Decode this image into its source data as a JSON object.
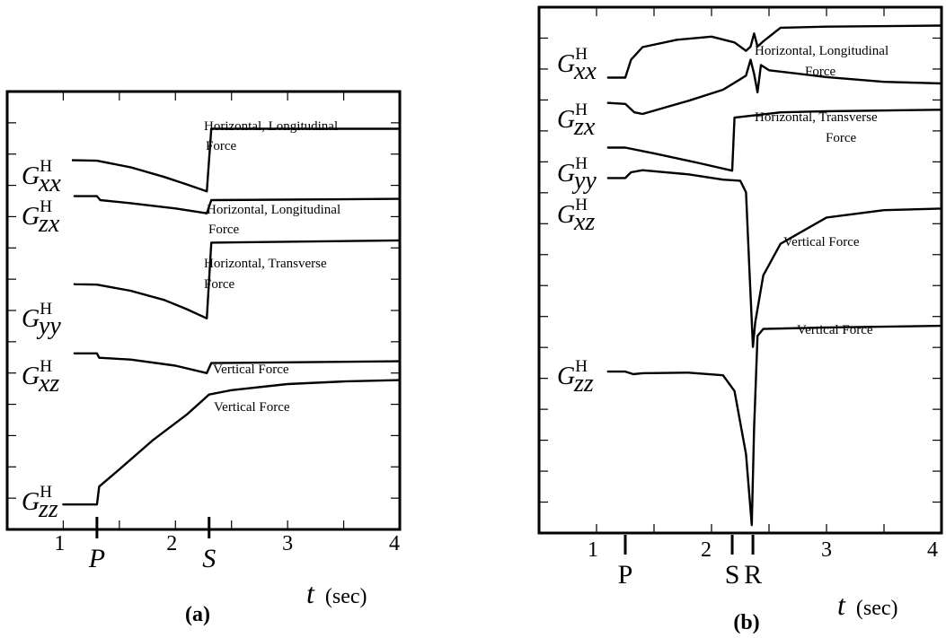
{
  "chart_data": [
    {
      "type": "line",
      "caption": "(a)",
      "xlabel": "t",
      "xunit": "(sec)",
      "xlim": [
        0.5,
        4.0
      ],
      "xticks": [
        "1",
        "2",
        "3",
        "4"
      ],
      "events": [
        {
          "label": "P",
          "x": 1.3
        },
        {
          "label": "S",
          "x": 2.3
        }
      ],
      "series": [
        {
          "symbol": "G",
          "sup": "H",
          "sub": "xx",
          "annotation": [
            "Horizontal, Longitudinal",
            "Force"
          ],
          "points": [
            [
              0.52,
              0.843
            ],
            [
              1.1,
              0.843
            ],
            [
              1.3,
              0.842
            ],
            [
              1.6,
              0.827
            ],
            [
              1.9,
              0.805
            ],
            [
              2.1,
              0.788
            ],
            [
              2.28,
              0.772
            ],
            [
              2.32,
              0.915
            ],
            [
              4.0,
              0.915
            ]
          ]
        },
        {
          "symbol": "G",
          "sup": "H",
          "sub": "zx",
          "annotation": [
            "Horizontal, Longitudinal",
            "Force"
          ],
          "points": [
            [
              0.52,
              0.761
            ],
            [
              1.1,
              0.761
            ],
            [
              1.3,
              0.761
            ],
            [
              1.33,
              0.752
            ],
            [
              1.6,
              0.745
            ],
            [
              2.0,
              0.733
            ],
            [
              2.28,
              0.722
            ],
            [
              2.32,
              0.752
            ],
            [
              4.0,
              0.755
            ]
          ]
        },
        {
          "symbol": "G",
          "sup": "H",
          "sub": "yy",
          "annotation": [
            "Horizontal, Transverse",
            "Force"
          ],
          "points": [
            [
              0.52,
              0.56
            ],
            [
              1.1,
              0.56
            ],
            [
              1.3,
              0.559
            ],
            [
              1.6,
              0.545
            ],
            [
              1.9,
              0.524
            ],
            [
              2.1,
              0.503
            ],
            [
              2.28,
              0.482
            ],
            [
              2.32,
              0.655
            ],
            [
              4.0,
              0.66
            ]
          ]
        },
        {
          "symbol": "G",
          "sup": "H",
          "sub": "xz",
          "annotation": [
            "Vertical Force"
          ],
          "points": [
            [
              0.52,
              0.402
            ],
            [
              1.1,
              0.402
            ],
            [
              1.3,
              0.402
            ],
            [
              1.32,
              0.392
            ],
            [
              1.6,
              0.388
            ],
            [
              2.0,
              0.374
            ],
            [
              2.28,
              0.357
            ],
            [
              2.32,
              0.38
            ],
            [
              4.0,
              0.384
            ]
          ]
        },
        {
          "symbol": "G",
          "sup": "H",
          "sub": "zz",
          "annotation": [
            "Vertical Force"
          ],
          "points": [
            [
              0.52,
              0.057
            ],
            [
              1.0,
              0.057
            ],
            [
              1.3,
              0.057
            ],
            [
              1.32,
              0.098
            ],
            [
              1.5,
              0.137
            ],
            [
              1.8,
              0.204
            ],
            [
              2.1,
              0.262
            ],
            [
              2.3,
              0.308
            ],
            [
              2.5,
              0.318
            ],
            [
              3.0,
              0.332
            ],
            [
              3.5,
              0.338
            ],
            [
              4.0,
              0.341
            ]
          ]
        }
      ]
    },
    {
      "type": "line",
      "caption": "(b)",
      "xlabel": "t",
      "xunit": "(sec)",
      "xlim": [
        0.5,
        4.0
      ],
      "xticks": [
        "1",
        "2",
        "3",
        "4"
      ],
      "events": [
        {
          "label": "P",
          "x": 1.25
        },
        {
          "label": "S",
          "x": 2.18
        },
        {
          "label": "R",
          "x": 2.36
        }
      ],
      "series": [
        {
          "symbol": "G",
          "sup": "H",
          "sub": "xx",
          "annotation": [
            "Horizontal, Longitudinal",
            "Force"
          ],
          "points": [
            [
              0.52,
              0.866
            ],
            [
              1.1,
              0.866
            ],
            [
              1.25,
              0.866
            ],
            [
              1.3,
              0.9
            ],
            [
              1.4,
              0.924
            ],
            [
              1.7,
              0.938
            ],
            [
              2.0,
              0.944
            ],
            [
              2.2,
              0.933
            ],
            [
              2.3,
              0.917
            ],
            [
              2.34,
              0.925
            ],
            [
              2.37,
              0.95
            ],
            [
              2.4,
              0.925
            ],
            [
              2.45,
              0.935
            ],
            [
              2.6,
              0.961
            ],
            [
              3.0,
              0.963
            ],
            [
              4.0,
              0.965
            ]
          ]
        },
        {
          "symbol": "G",
          "sup": "H",
          "sub": "zx",
          "annotation": [],
          "points": [
            [
              0.52,
              0.818
            ],
            [
              1.1,
              0.818
            ],
            [
              1.25,
              0.816
            ],
            [
              1.33,
              0.8
            ],
            [
              1.4,
              0.797
            ],
            [
              1.8,
              0.822
            ],
            [
              2.1,
              0.843
            ],
            [
              2.25,
              0.863
            ],
            [
              2.3,
              0.87
            ],
            [
              2.34,
              0.9
            ],
            [
              2.37,
              0.873
            ],
            [
              2.4,
              0.838
            ],
            [
              2.43,
              0.89
            ],
            [
              2.5,
              0.88
            ],
            [
              3.0,
              0.867
            ],
            [
              3.5,
              0.858
            ],
            [
              4.0,
              0.855
            ]
          ]
        },
        {
          "symbol": "G",
          "sup": "H",
          "sub": "yy",
          "annotation": [
            "Horizontal, Transverse",
            "Force"
          ],
          "points": [
            [
              0.52,
              0.733
            ],
            [
              1.1,
              0.733
            ],
            [
              1.25,
              0.733
            ],
            [
              1.5,
              0.722
            ],
            [
              1.9,
              0.703
            ],
            [
              2.18,
              0.689
            ],
            [
              2.2,
              0.79
            ],
            [
              2.6,
              0.8
            ],
            [
              3.0,
              0.802
            ],
            [
              4.0,
              0.805
            ]
          ]
        },
        {
          "symbol": "G",
          "sup": "H",
          "sub": "xz",
          "annotation": [
            "Vertical Force"
          ],
          "points": [
            [
              0.52,
              0.675
            ],
            [
              1.1,
              0.675
            ],
            [
              1.25,
              0.675
            ],
            [
              1.3,
              0.686
            ],
            [
              1.4,
              0.69
            ],
            [
              1.8,
              0.682
            ],
            [
              2.1,
              0.672
            ],
            [
              2.25,
              0.67
            ],
            [
              2.3,
              0.648
            ],
            [
              2.33,
              0.5
            ],
            [
              2.36,
              0.354
            ],
            [
              2.38,
              0.4
            ],
            [
              2.45,
              0.49
            ],
            [
              2.6,
              0.55
            ],
            [
              3.0,
              0.6
            ],
            [
              3.5,
              0.614
            ],
            [
              4.0,
              0.617
            ]
          ]
        },
        {
          "symbol": "G",
          "sup": "H",
          "sub": "zz",
          "annotation": [
            "Vertical Force"
          ],
          "points": [
            [
              0.52,
              0.307
            ],
            [
              1.1,
              0.307
            ],
            [
              1.25,
              0.307
            ],
            [
              1.32,
              0.302
            ],
            [
              1.4,
              0.304
            ],
            [
              1.8,
              0.305
            ],
            [
              2.1,
              0.3
            ],
            [
              2.2,
              0.27
            ],
            [
              2.3,
              0.15
            ],
            [
              2.35,
              0.015
            ],
            [
              2.37,
              0.2
            ],
            [
              2.4,
              0.375
            ],
            [
              2.45,
              0.388
            ],
            [
              3.0,
              0.391
            ],
            [
              4.0,
              0.394
            ]
          ]
        }
      ]
    }
  ]
}
